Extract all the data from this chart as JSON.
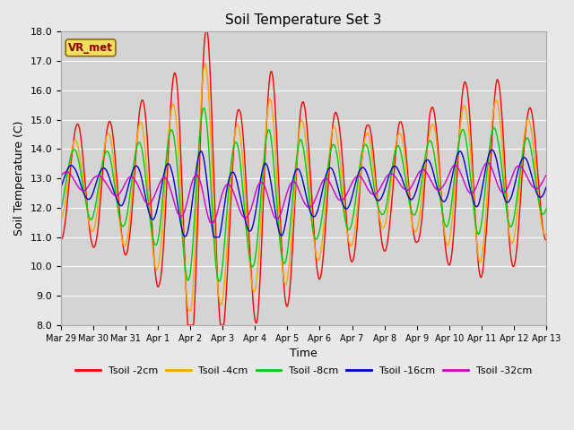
{
  "title": "Soil Temperature Set 3",
  "xlabel": "Time",
  "ylabel": "Soil Temperature (C)",
  "ylim": [
    8.0,
    18.0
  ],
  "yticks": [
    8.0,
    9.0,
    10.0,
    11.0,
    12.0,
    13.0,
    14.0,
    15.0,
    16.0,
    17.0,
    18.0
  ],
  "background_color": "#e8e8e8",
  "plot_bg_color": "#d4d4d4",
  "grid_color": "#ffffff",
  "legend_label": "VR_met",
  "series_colors": {
    "Tsoil -2cm": "#ff0000",
    "Tsoil -4cm": "#ffa500",
    "Tsoil -8cm": "#00cc00",
    "Tsoil -16cm": "#0000cc",
    "Tsoil -32cm": "#cc00cc"
  },
  "xtick_labels": [
    "Mar 29",
    "Mar 30",
    "Mar 31",
    "Apr 1",
    "Apr 2",
    "Apr 3",
    "Apr 4",
    "Apr 5",
    "Apr 6",
    "Apr 7",
    "Apr 8",
    "Apr 9",
    "Apr 10",
    "Apr 11",
    "Apr 12",
    "Apr 13"
  ]
}
